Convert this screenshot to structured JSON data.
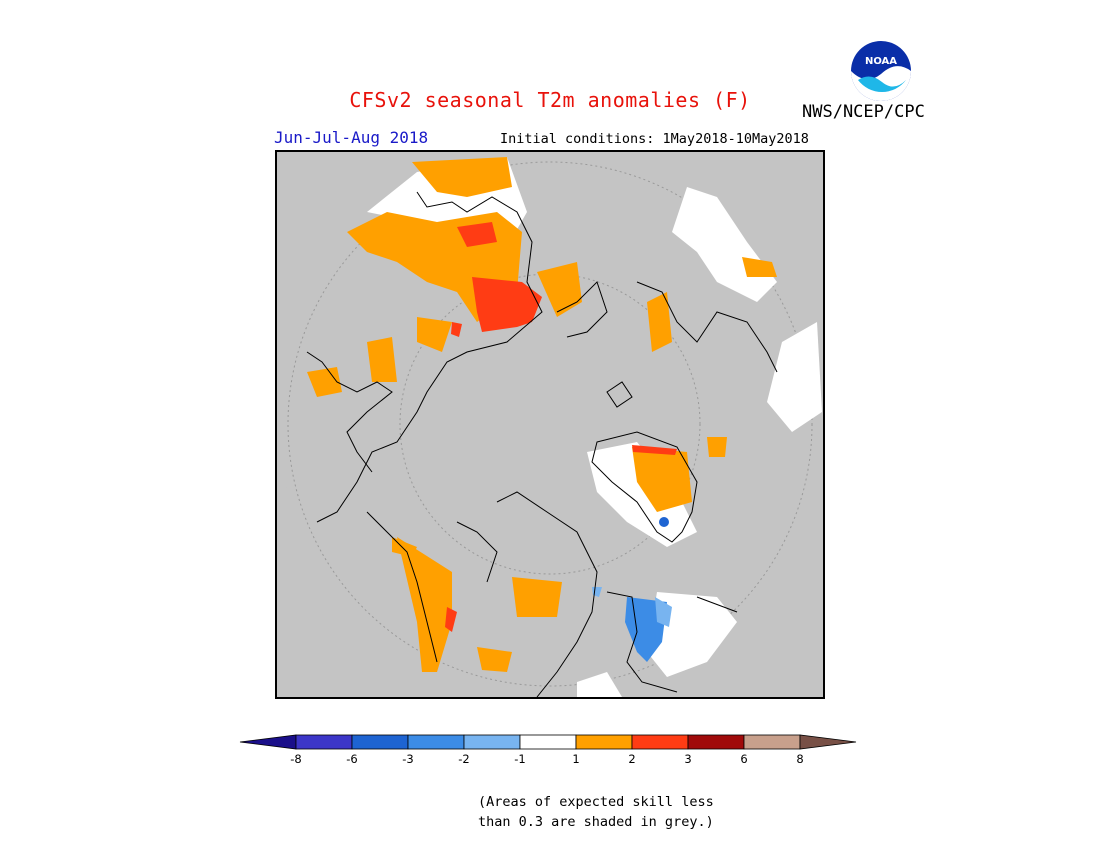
{
  "header": {
    "title": "CFSv2 seasonal T2m anomalies (F)",
    "period": "Jun-Jul-Aug 2018",
    "initial_conditions": "Initial conditions: 1May2018-10May2018",
    "agency": "NWS/NCEP/CPC",
    "logo_text": "NOAA"
  },
  "legend": {
    "labels": [
      "-8",
      "-6",
      "-3",
      "-2",
      "-1",
      "1",
      "2",
      "3",
      "6",
      "8"
    ],
    "colors": [
      "#1a0f8a",
      "#3c36c8",
      "#1e64d2",
      "#3c8ce6",
      "#78b4f0",
      "#ffffff",
      "#ffa000",
      "#ff3c14",
      "#a00a0a",
      "#c8a08c",
      "#785046"
    ]
  },
  "note": {
    "line1": "(Areas of expected skill less",
    "line2": "than 0.3 are shaded in grey.)"
  },
  "map": {
    "projection": "polar-stereographic",
    "background_color": "#c4c4c4"
  }
}
